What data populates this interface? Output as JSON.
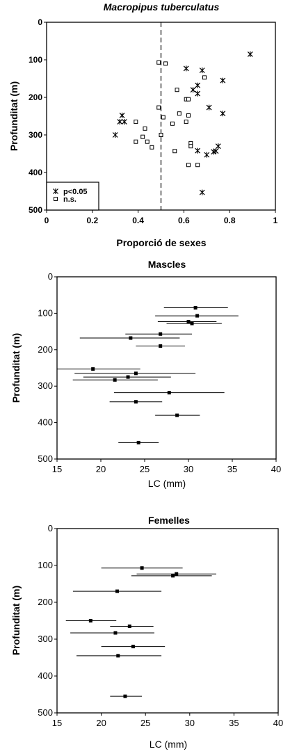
{
  "chart_data": [
    {
      "type": "scatter",
      "title": "Macropipus tuberculatus",
      "xlabel": "Proporció de sexes",
      "ylabel": "Profunditat (m)",
      "xlim": [
        0,
        1
      ],
      "ylim": [
        500,
        0
      ],
      "x_ticks": [
        "0",
        "0.2",
        "0.4",
        "0.6",
        "0.8",
        "1"
      ],
      "y_ticks": [
        "0",
        "100",
        "200",
        "300",
        "400",
        "500"
      ],
      "reference_line_x": 0.5,
      "legend_position": "bottom-left",
      "series": [
        {
          "name": "p<0.05",
          "marker": "asterisk",
          "points": [
            {
              "x": 0.89,
              "y": 85
            },
            {
              "x": 0.61,
              "y": 123
            },
            {
              "x": 0.68,
              "y": 128
            },
            {
              "x": 0.77,
              "y": 155
            },
            {
              "x": 0.66,
              "y": 168
            },
            {
              "x": 0.64,
              "y": 180
            },
            {
              "x": 0.66,
              "y": 190
            },
            {
              "x": 0.71,
              "y": 227
            },
            {
              "x": 0.77,
              "y": 243
            },
            {
              "x": 0.33,
              "y": 248
            },
            {
              "x": 0.32,
              "y": 265
            },
            {
              "x": 0.34,
              "y": 265
            },
            {
              "x": 0.3,
              "y": 300
            },
            {
              "x": 0.75,
              "y": 330
            },
            {
              "x": 0.66,
              "y": 342
            },
            {
              "x": 0.74,
              "y": 343
            },
            {
              "x": 0.73,
              "y": 345
            },
            {
              "x": 0.7,
              "y": 353
            },
            {
              "x": 0.68,
              "y": 453
            }
          ]
        },
        {
          "name": "n.s.",
          "marker": "open-square",
          "points": [
            {
              "x": 0.49,
              "y": 107
            },
            {
              "x": 0.52,
              "y": 110
            },
            {
              "x": 0.69,
              "y": 147
            },
            {
              "x": 0.57,
              "y": 180
            },
            {
              "x": 0.61,
              "y": 205
            },
            {
              "x": 0.62,
              "y": 205
            },
            {
              "x": 0.49,
              "y": 227
            },
            {
              "x": 0.58,
              "y": 243
            },
            {
              "x": 0.62,
              "y": 248
            },
            {
              "x": 0.51,
              "y": 253
            },
            {
              "x": 0.39,
              "y": 265
            },
            {
              "x": 0.61,
              "y": 265
            },
            {
              "x": 0.55,
              "y": 270
            },
            {
              "x": 0.43,
              "y": 283
            },
            {
              "x": 0.5,
              "y": 300
            },
            {
              "x": 0.42,
              "y": 305
            },
            {
              "x": 0.39,
              "y": 318
            },
            {
              "x": 0.44,
              "y": 318
            },
            {
              "x": 0.63,
              "y": 322
            },
            {
              "x": 0.63,
              "y": 330
            },
            {
              "x": 0.46,
              "y": 333
            },
            {
              "x": 0.56,
              "y": 343
            },
            {
              "x": 0.62,
              "y": 380
            },
            {
              "x": 0.66,
              "y": 380
            }
          ]
        }
      ]
    },
    {
      "type": "errorbar",
      "title": "Mascles",
      "xlabel": "LC (mm)",
      "ylabel": "Profunditat (m)",
      "xlim": [
        15,
        40
      ],
      "ylim": [
        500,
        0
      ],
      "x_ticks": [
        "15",
        "20",
        "25",
        "30",
        "35",
        "40"
      ],
      "y_ticks": [
        "0",
        "100",
        "200",
        "300",
        "400",
        "500"
      ],
      "points": [
        {
          "depth": 85,
          "mean": 30.8,
          "low": 27.2,
          "high": 34.5
        },
        {
          "depth": 107,
          "mean": 31.0,
          "low": 26.2,
          "high": 35.7
        },
        {
          "depth": 123,
          "mean": 30.0,
          "low": 26.5,
          "high": 33.2
        },
        {
          "depth": 128,
          "mean": 30.4,
          "low": 27.5,
          "high": 33.8
        },
        {
          "depth": 157,
          "mean": 26.8,
          "low": 22.8,
          "high": 30.4
        },
        {
          "depth": 168,
          "mean": 23.4,
          "low": 17.6,
          "high": 29.0
        },
        {
          "depth": 190,
          "mean": 26.8,
          "low": 24.0,
          "high": 29.6
        },
        {
          "depth": 253,
          "mean": 19.1,
          "low": 15.0,
          "high": 24.5
        },
        {
          "depth": 265,
          "mean": 24.0,
          "low": 17.0,
          "high": 30.8
        },
        {
          "depth": 275,
          "mean": 23.1,
          "low": 18.0,
          "high": 28.0
        },
        {
          "depth": 283,
          "mean": 21.6,
          "low": 16.8,
          "high": 26.5
        },
        {
          "depth": 318,
          "mean": 27.8,
          "low": 21.5,
          "high": 34.1
        },
        {
          "depth": 343,
          "mean": 24.0,
          "low": 21.0,
          "high": 27.0
        },
        {
          "depth": 380,
          "mean": 28.7,
          "low": 26.2,
          "high": 31.3
        },
        {
          "depth": 455,
          "mean": 24.3,
          "low": 22.0,
          "high": 26.6
        }
      ]
    },
    {
      "type": "errorbar",
      "title": "Femelles",
      "xlabel": "LC (mm)",
      "ylabel": "Profunditat (m)",
      "xlim": [
        15,
        40
      ],
      "ylim": [
        500,
        0
      ],
      "x_ticks": [
        "15",
        "20",
        "25",
        "30",
        "35",
        "40"
      ],
      "y_ticks": [
        "0",
        "100",
        "200",
        "300",
        "400",
        "500"
      ],
      "points": [
        {
          "depth": 107,
          "mean": 24.6,
          "low": 20.0,
          "high": 29.2
        },
        {
          "depth": 123,
          "mean": 28.5,
          "low": 24.0,
          "high": 33.0
        },
        {
          "depth": 128,
          "mean": 28.1,
          "low": 23.4,
          "high": 32.5
        },
        {
          "depth": 170,
          "mean": 21.8,
          "low": 16.8,
          "high": 26.8
        },
        {
          "depth": 250,
          "mean": 18.8,
          "low": 16.0,
          "high": 21.7
        },
        {
          "depth": 265,
          "mean": 23.2,
          "low": 21.0,
          "high": 25.9
        },
        {
          "depth": 283,
          "mean": 21.6,
          "low": 16.5,
          "high": 26.0
        },
        {
          "depth": 320,
          "mean": 23.6,
          "low": 20.0,
          "high": 27.2
        },
        {
          "depth": 345,
          "mean": 21.9,
          "low": 17.2,
          "high": 26.8
        },
        {
          "depth": 455,
          "mean": 22.7,
          "low": 21.0,
          "high": 24.6
        }
      ]
    }
  ]
}
